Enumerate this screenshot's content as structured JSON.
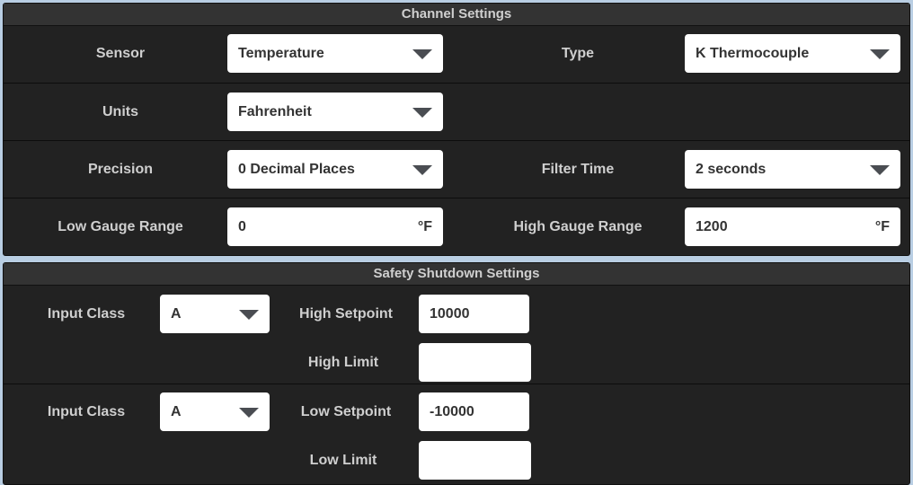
{
  "channel": {
    "title": "Channel Settings",
    "sensor": {
      "label": "Sensor",
      "value": "Temperature"
    },
    "type": {
      "label": "Type",
      "value": "K Thermocouple"
    },
    "units": {
      "label": "Units",
      "value": "Fahrenheit"
    },
    "precision": {
      "label": "Precision",
      "value": "0 Decimal Places"
    },
    "filter_time": {
      "label": "Filter Time",
      "value": "2 seconds"
    },
    "low_gauge": {
      "label": "Low Gauge Range",
      "value": "0",
      "unit": "°F"
    },
    "high_gauge": {
      "label": "High Gauge Range",
      "value": "1200",
      "unit": "°F"
    }
  },
  "safety": {
    "title": "Safety Shutdown Settings",
    "high": {
      "class_label": "Input Class",
      "class_value": "A",
      "setpoint_label": "High Setpoint",
      "setpoint_value": "10000",
      "limit_label": "High Limit",
      "limit_value": ""
    },
    "low": {
      "class_label": "Input Class",
      "class_value": "A",
      "setpoint_label": "Low Setpoint",
      "setpoint_value": "-10000",
      "limit_label": "Low Limit",
      "limit_value": ""
    }
  }
}
